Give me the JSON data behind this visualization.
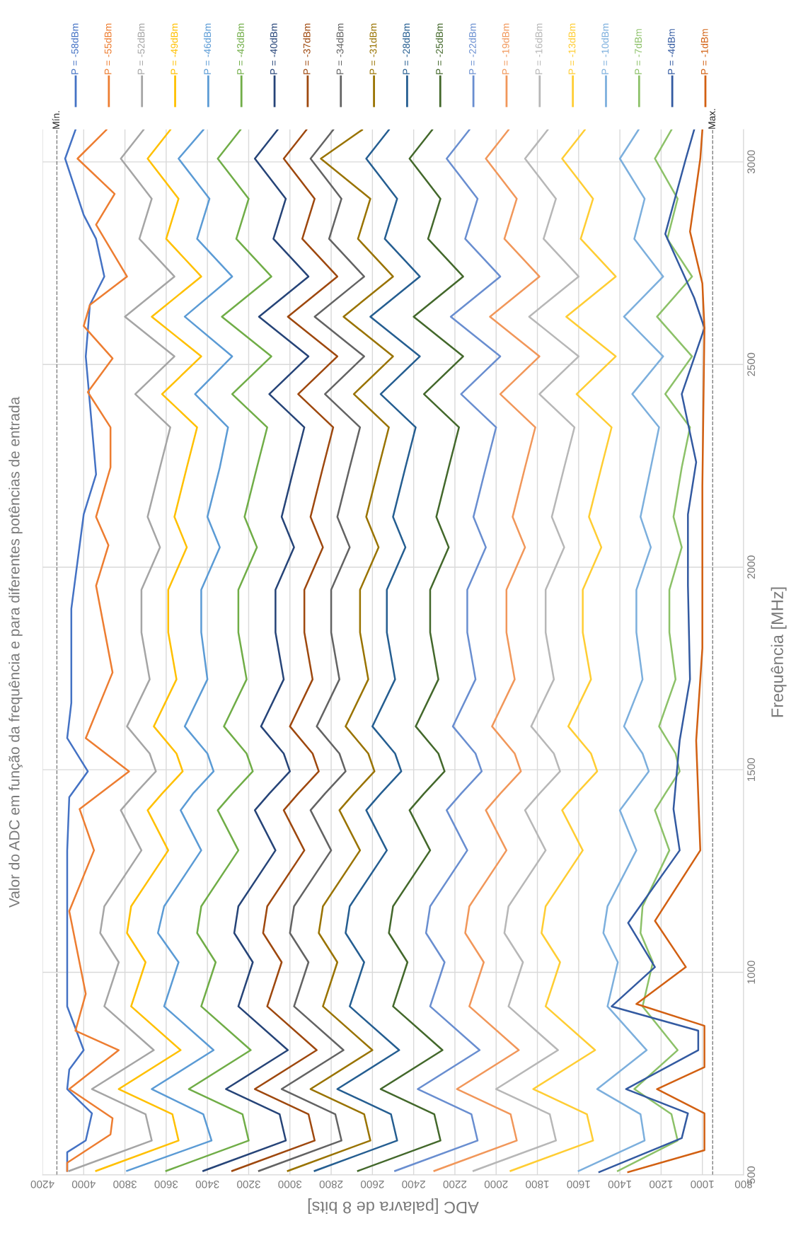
{
  "chart_data": {
    "type": "line",
    "title": "Valor do ADC em função da frequência e para diferentes potências de entrada",
    "xlabel": "ADC [palavra de 8 bits]",
    "ylabel": "Frequência [MHz]",
    "xlim": [
      4200,
      800
    ],
    "xticks": [
      800,
      1000,
      1200,
      1400,
      1600,
      1800,
      2000,
      2200,
      2400,
      2600,
      2800,
      3000,
      3200,
      3400,
      3600,
      3800,
      4000,
      4200
    ],
    "ylim": [
      500,
      3080
    ],
    "yticks": [
      500,
      1000,
      1500,
      2000,
      2500,
      3000
    ],
    "grid": true,
    "legend": "top",
    "line_style": "solid",
    "marker": "none",
    "ref_lines": [
      {
        "axis": "x",
        "value": 4130,
        "label": "Mín.",
        "color": "#808080",
        "line_style": "dashed"
      },
      {
        "axis": "x",
        "value": 950,
        "label": "Max.",
        "color": "#808080",
        "line_style": "dashed"
      }
    ],
    "series": [
      {
        "name": "P = -58dBm",
        "color": "#4472c4",
        "values": [
          510,
          556,
          585,
          652,
          712,
          760,
          808,
          916,
          1100,
          1300,
          1432,
          1496,
          1578,
          1665,
          1897,
          2130,
          2229,
          2520,
          2647,
          2717,
          2810,
          2869,
          3008,
          3079
        ],
        "x": [
          4080,
          4080,
          3990,
          3960,
          4080,
          4070,
          4000,
          4080,
          4080,
          4080,
          4070,
          3980,
          4080,
          4060,
          4060,
          4000,
          3940,
          3990,
          3970,
          3900,
          3940,
          4000,
          4090,
          4040
        ]
      },
      {
        "name": "P = -55dBm",
        "color": "#ed7d31",
        "values": [
          510,
          530,
          600,
          640,
          712,
          808,
          856,
          947,
          1151,
          1301,
          1403,
          1496,
          1578,
          1740,
          1954,
          2054,
          2124,
          2246,
          2345,
          2432,
          2515,
          2595,
          2647,
          2717,
          2845,
          2921,
          3008,
          3079
        ],
        "x": [
          4080,
          4080,
          3870,
          3860,
          4070,
          3830,
          4040,
          3990,
          4070,
          3950,
          4020,
          3780,
          3990,
          3860,
          3940,
          3880,
          3940,
          3870,
          3870,
          3980,
          3860,
          4000,
          3970,
          3790,
          3940,
          3850,
          4030,
          3890
        ]
      },
      {
        "name": "P = -52dBm",
        "color": "#a5a5a5",
        "values": [
          510,
          585,
          650,
          712,
          808,
          916,
          1025,
          1097,
          1163,
          1301,
          1400,
          1441,
          1496,
          1540,
          1607,
          1723,
          1839,
          1944,
          2049,
          2124,
          2246,
          2345,
          2427,
          2520,
          2618,
          2717,
          2810,
          2909,
          3008,
          3079
        ],
        "x": [
          4070,
          3670,
          3700,
          3960,
          3660,
          3900,
          3830,
          3920,
          3900,
          3720,
          3820,
          3750,
          3650,
          3680,
          3790,
          3680,
          3720,
          3720,
          3630,
          3690,
          3630,
          3580,
          3750,
          3560,
          3800,
          3560,
          3730,
          3670,
          3820,
          3710
        ]
      },
      {
        "name": "P = -49dBm",
        "color": "#ffc000",
        "values": [
          510,
          585,
          650,
          712,
          808,
          916,
          1025,
          1097,
          1163,
          1301,
          1400,
          1441,
          1496,
          1540,
          1607,
          1723,
          1839,
          1944,
          2049,
          2124,
          2246,
          2345,
          2427,
          2520,
          2618,
          2717,
          2810,
          2909,
          3008,
          3079
        ],
        "x": [
          3940,
          3540,
          3570,
          3830,
          3530,
          3770,
          3700,
          3790,
          3770,
          3590,
          3690,
          3620,
          3520,
          3550,
          3660,
          3550,
          3590,
          3590,
          3500,
          3560,
          3500,
          3450,
          3620,
          3430,
          3670,
          3430,
          3600,
          3540,
          3690,
          3580
        ]
      },
      {
        "name": "P = -46dBm",
        "color": "#5b9bd5",
        "values": [
          510,
          585,
          650,
          712,
          808,
          916,
          1025,
          1097,
          1163,
          1301,
          1400,
          1441,
          1496,
          1540,
          1607,
          1723,
          1839,
          1944,
          2049,
          2124,
          2246,
          2345,
          2427,
          2520,
          2618,
          2717,
          2810,
          2909,
          3008,
          3079
        ],
        "x": [
          3790,
          3380,
          3420,
          3670,
          3370,
          3610,
          3540,
          3640,
          3610,
          3430,
          3530,
          3470,
          3370,
          3400,
          3510,
          3400,
          3430,
          3430,
          3340,
          3400,
          3340,
          3300,
          3460,
          3280,
          3510,
          3280,
          3450,
          3390,
          3540,
          3420
        ]
      },
      {
        "name": "P = -43dBm",
        "color": "#70ad47",
        "values": [
          510,
          585,
          650,
          712,
          808,
          916,
          1025,
          1097,
          1163,
          1301,
          1400,
          1441,
          1496,
          1540,
          1607,
          1723,
          1839,
          1944,
          2049,
          2124,
          2246,
          2345,
          2427,
          2520,
          2618,
          2717,
          2810,
          2909,
          3008,
          3079
        ],
        "x": [
          3600,
          3200,
          3230,
          3490,
          3190,
          3430,
          3360,
          3450,
          3430,
          3250,
          3350,
          3280,
          3180,
          3210,
          3320,
          3210,
          3250,
          3250,
          3160,
          3220,
          3160,
          3110,
          3280,
          3090,
          3330,
          3090,
          3260,
          3200,
          3350,
          3240
        ]
      },
      {
        "name": "P = -40dBm",
        "color": "#264478",
        "values": [
          510,
          585,
          650,
          712,
          808,
          916,
          1025,
          1097,
          1163,
          1301,
          1400,
          1441,
          1496,
          1540,
          1607,
          1723,
          1839,
          1944,
          2049,
          2124,
          2246,
          2345,
          2427,
          2520,
          2618,
          2717,
          2810,
          2909,
          3008,
          3079
        ],
        "x": [
          3420,
          3020,
          3050,
          3310,
          3010,
          3250,
          3180,
          3270,
          3250,
          3070,
          3170,
          3100,
          3000,
          3030,
          3140,
          3030,
          3070,
          3070,
          2980,
          3040,
          2980,
          2930,
          3100,
          2910,
          3150,
          2910,
          3080,
          3020,
          3170,
          3060
        ]
      },
      {
        "name": "P = -37dBm",
        "color": "#9e480e",
        "values": [
          510,
          585,
          650,
          712,
          808,
          916,
          1025,
          1097,
          1163,
          1301,
          1400,
          1441,
          1496,
          1540,
          1607,
          1723,
          1839,
          1944,
          2049,
          2124,
          2246,
          2345,
          2427,
          2520,
          2618,
          2717,
          2810,
          2909,
          3008,
          3079
        ],
        "x": [
          3280,
          2880,
          2910,
          3170,
          2870,
          3110,
          3040,
          3130,
          3110,
          2930,
          3030,
          2960,
          2860,
          2890,
          3000,
          2890,
          2930,
          2930,
          2840,
          2900,
          2840,
          2790,
          2960,
          2770,
          3010,
          2770,
          2940,
          2880,
          3030,
          2920
        ]
      },
      {
        "name": "P = -34dBm",
        "color": "#636363",
        "values": [
          510,
          585,
          650,
          712,
          808,
          916,
          1025,
          1097,
          1163,
          1301,
          1400,
          1441,
          1496,
          1540,
          1607,
          1723,
          1839,
          1944,
          2049,
          2124,
          2246,
          2345,
          2427,
          2520,
          2618,
          2717,
          2810,
          2909,
          3008,
          3079
        ],
        "x": [
          3150,
          2750,
          2780,
          3040,
          2740,
          2980,
          2910,
          3000,
          2980,
          2800,
          2900,
          2830,
          2730,
          2760,
          2870,
          2760,
          2800,
          2800,
          2710,
          2770,
          2710,
          2660,
          2830,
          2640,
          2880,
          2640,
          2810,
          2750,
          2900,
          2790
        ]
      },
      {
        "name": "P = -31dBm",
        "color": "#997300",
        "values": [
          510,
          585,
          650,
          712,
          808,
          916,
          1025,
          1097,
          1163,
          1301,
          1400,
          1441,
          1496,
          1540,
          1607,
          1723,
          1839,
          1944,
          2049,
          2124,
          2246,
          2345,
          2427,
          2520,
          2618,
          2717,
          2810,
          2909,
          3008,
          3079
        ],
        "x": [
          3010,
          2610,
          2640,
          2900,
          2600,
          2840,
          2770,
          2860,
          2840,
          2660,
          2760,
          2690,
          2590,
          2620,
          2730,
          2620,
          2660,
          2660,
          2570,
          2630,
          2570,
          2520,
          2690,
          2500,
          2740,
          2500,
          2670,
          2610,
          2850,
          2650
        ]
      },
      {
        "name": "P = -28dBm",
        "color": "#255e91",
        "values": [
          510,
          585,
          650,
          712,
          808,
          916,
          1025,
          1097,
          1163,
          1301,
          1400,
          1441,
          1496,
          1540,
          1607,
          1723,
          1839,
          1944,
          2049,
          2124,
          2246,
          2345,
          2427,
          2520,
          2618,
          2717,
          2810,
          2909,
          3008,
          3079
        ],
        "x": [
          2880,
          2480,
          2510,
          2770,
          2470,
          2710,
          2640,
          2730,
          2710,
          2530,
          2630,
          2560,
          2460,
          2490,
          2600,
          2490,
          2530,
          2530,
          2440,
          2500,
          2440,
          2390,
          2560,
          2370,
          2610,
          2370,
          2540,
          2480,
          2630,
          2520
        ]
      },
      {
        "name": "P = -25dBm",
        "color": "#43682b",
        "values": [
          510,
          585,
          650,
          712,
          808,
          916,
          1025,
          1097,
          1163,
          1301,
          1400,
          1441,
          1496,
          1540,
          1607,
          1723,
          1839,
          1944,
          2049,
          2124,
          2246,
          2345,
          2427,
          2520,
          2618,
          2717,
          2810,
          2909,
          3008,
          3079
        ],
        "x": [
          2670,
          2270,
          2300,
          2560,
          2260,
          2500,
          2430,
          2520,
          2500,
          2320,
          2420,
          2350,
          2250,
          2280,
          2390,
          2280,
          2320,
          2320,
          2230,
          2290,
          2230,
          2180,
          2350,
          2160,
          2400,
          2160,
          2330,
          2270,
          2420,
          2310
        ]
      },
      {
        "name": "P = -22dBm",
        "color": "#698ed0",
        "values": [
          510,
          585,
          650,
          712,
          808,
          916,
          1025,
          1097,
          1163,
          1301,
          1400,
          1441,
          1496,
          1540,
          1607,
          1723,
          1839,
          1944,
          2049,
          2124,
          2246,
          2345,
          2427,
          2520,
          2618,
          2717,
          2810,
          2909,
          3008,
          3079
        ],
        "x": [
          2490,
          2090,
          2120,
          2380,
          2080,
          2320,
          2250,
          2340,
          2320,
          2140,
          2240,
          2170,
          2070,
          2100,
          2210,
          2100,
          2140,
          2140,
          2050,
          2110,
          2050,
          2000,
          2170,
          1980,
          2220,
          1980,
          2150,
          2090,
          2240,
          2130
        ]
      },
      {
        "name": "P = -19dBm",
        "color": "#f1975a",
        "values": [
          510,
          585,
          650,
          712,
          808,
          916,
          1025,
          1097,
          1163,
          1301,
          1400,
          1441,
          1496,
          1540,
          1607,
          1723,
          1839,
          1944,
          2049,
          2124,
          2246,
          2345,
          2427,
          2520,
          2618,
          2717,
          2810,
          2909,
          3008,
          3079
        ],
        "x": [
          2300,
          1900,
          1930,
          2190,
          1890,
          2130,
          2060,
          2150,
          2130,
          1950,
          2050,
          1980,
          1880,
          1910,
          2020,
          1910,
          1950,
          1950,
          1860,
          1920,
          1860,
          1810,
          1980,
          1790,
          2030,
          1790,
          1960,
          1900,
          2050,
          1940
        ]
      },
      {
        "name": "P = -16dBm",
        "color": "#b7b7b7",
        "values": [
          510,
          585,
          650,
          712,
          808,
          916,
          1025,
          1097,
          1163,
          1301,
          1400,
          1441,
          1496,
          1540,
          1607,
          1723,
          1839,
          1944,
          2049,
          2124,
          2246,
          2345,
          2427,
          2520,
          2618,
          2717,
          2810,
          2909,
          3008,
          3079
        ],
        "x": [
          2110,
          1710,
          1740,
          2000,
          1700,
          1940,
          1870,
          1960,
          1940,
          1760,
          1860,
          1790,
          1690,
          1720,
          1830,
          1720,
          1760,
          1760,
          1670,
          1730,
          1670,
          1620,
          1790,
          1600,
          1840,
          1600,
          1770,
          1710,
          1860,
          1750
        ]
      },
      {
        "name": "P = -13dBm",
        "color": "#ffcd33",
        "values": [
          510,
          585,
          650,
          712,
          808,
          916,
          1025,
          1097,
          1163,
          1301,
          1400,
          1441,
          1496,
          1540,
          1607,
          1723,
          1839,
          1944,
          2049,
          2124,
          2246,
          2345,
          2427,
          2520,
          2618,
          2717,
          2810,
          2909,
          3008,
          3079
        ],
        "x": [
          1930,
          1530,
          1560,
          1820,
          1520,
          1760,
          1690,
          1780,
          1760,
          1580,
          1680,
          1610,
          1510,
          1540,
          1650,
          1540,
          1580,
          1580,
          1490,
          1550,
          1490,
          1440,
          1610,
          1420,
          1660,
          1420,
          1590,
          1530,
          1680,
          1570
        ]
      },
      {
        "name": "P = -10dBm",
        "color": "#7cafdd",
        "values": [
          510,
          585,
          650,
          712,
          808,
          916,
          1025,
          1097,
          1163,
          1301,
          1400,
          1441,
          1496,
          1540,
          1607,
          1723,
          1839,
          1944,
          2049,
          2124,
          2246,
          2345,
          2427,
          2520,
          2618,
          2717,
          2810,
          2909,
          3008,
          3079
        ],
        "x": [
          1600,
          1280,
          1300,
          1510,
          1270,
          1460,
          1410,
          1480,
          1460,
          1320,
          1400,
          1340,
          1260,
          1290,
          1380,
          1290,
          1320,
          1320,
          1250,
          1300,
          1250,
          1210,
          1340,
          1190,
          1380,
          1190,
          1330,
          1280,
          1400,
          1310
        ]
      },
      {
        "name": "P = -7dBm",
        "color": "#8cc168",
        "values": [
          510,
          585,
          650,
          712,
          808,
          916,
          1025,
          1097,
          1163,
          1301,
          1400,
          1441,
          1496,
          1540,
          1607,
          1723,
          1839,
          1944,
          2049,
          2124,
          2246,
          2345,
          2427,
          2520,
          2618,
          2717,
          2810,
          2909,
          3008,
          3079
        ],
        "x": [
          1410,
          1120,
          1150,
          1330,
          1120,
          1290,
          1240,
          1300,
          1290,
          1160,
          1230,
          1180,
          1110,
          1130,
          1210,
          1130,
          1160,
          1160,
          1100,
          1140,
          1100,
          1060,
          1180,
          1050,
          1220,
          1050,
          1170,
          1120,
          1230,
          1150
        ]
      },
      {
        "name": "P = -4dBm",
        "color": "#335aa1",
        "values": [
          507,
          591,
          652,
          712,
          808,
          856,
          916,
          1013,
          1122,
          1301,
          1403,
          1572,
          1723,
          1955,
          2130,
          2259,
          2427,
          2590,
          2665,
          2822,
          3008,
          3079
        ],
        "x": [
          1500,
          1100,
          1070,
          1370,
          1020,
          1020,
          1440,
          1230,
          1360,
          1110,
          1140,
          1110,
          1060,
          1070,
          1070,
          1030,
          1100,
          990,
          1040,
          1180,
          1080,
          1040
        ]
      },
      {
        "name": "P = -1dBm",
        "color": "#d26012",
        "values": [
          507,
          561,
          652,
          712,
          766,
          868,
          922,
          1013,
          1127,
          1301,
          1572,
          1800,
          2200,
          2590,
          2700,
          2828,
          3008,
          3079
        ],
        "x": [
          1360,
          990,
          990,
          1220,
          990,
          990,
          1320,
          1080,
          1230,
          1010,
          1030,
          1000,
          1000,
          990,
          1000,
          1060,
          1010,
          1000
        ]
      }
    ]
  }
}
